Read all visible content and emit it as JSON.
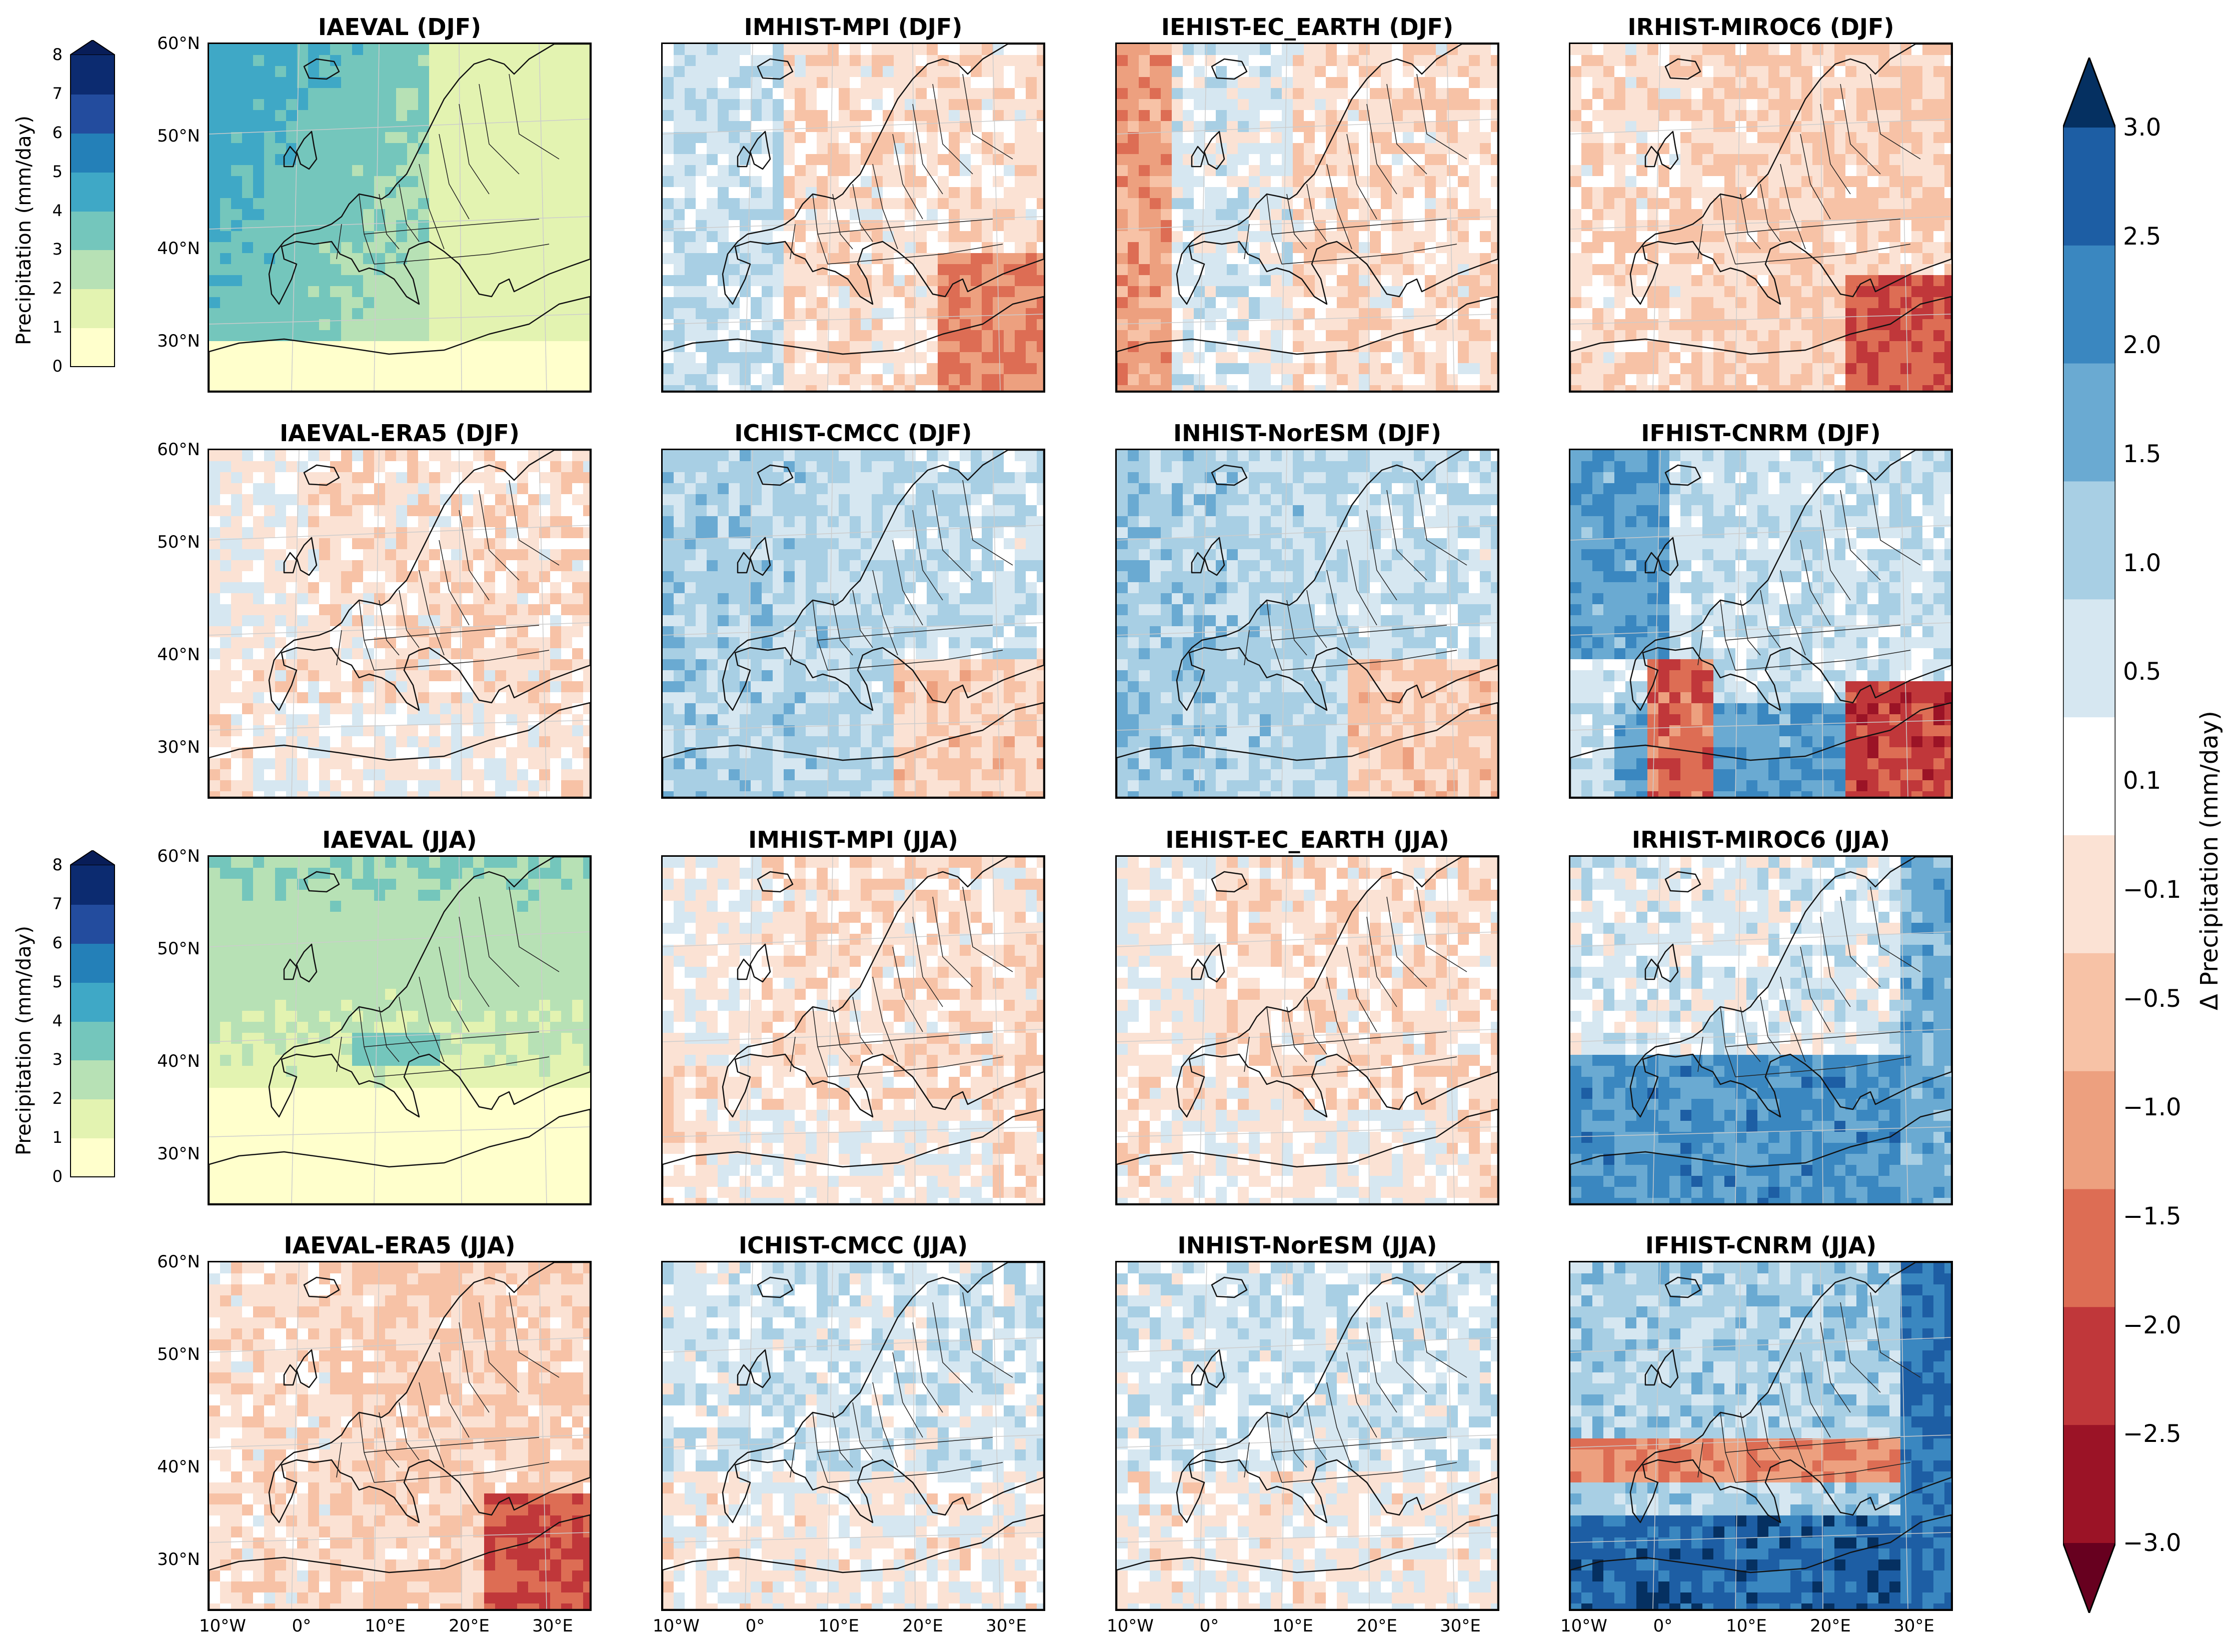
{
  "panels": [
    {
      "title": "IAEVAL (DJF)",
      "kind": "abs",
      "season": "DJF"
    },
    {
      "title": "IMHIST-MPI (DJF)",
      "kind": "diff",
      "season": "DJF",
      "bias": "mixed-blue-west"
    },
    {
      "title": "IEHIST-EC_EARTH (DJF)",
      "kind": "diff",
      "season": "DJF",
      "bias": "red-west"
    },
    {
      "title": "IRHIST-MIROC6 (DJF)",
      "kind": "diff",
      "season": "DJF",
      "bias": "red"
    },
    {
      "title": "IAEVAL-ERA5 (DJF)",
      "kind": "diff",
      "season": "DJF",
      "bias": "light-red"
    },
    {
      "title": "ICHIST-CMCC (DJF)",
      "kind": "diff",
      "season": "DJF",
      "bias": "blue"
    },
    {
      "title": "INHIST-NorESM (DJF)",
      "kind": "diff",
      "season": "DJF",
      "bias": "blue"
    },
    {
      "title": "IFHIST-CNRM (DJF)",
      "kind": "diff",
      "season": "DJF",
      "bias": "blue-strong"
    },
    {
      "title": "IAEVAL (JJA)",
      "kind": "abs",
      "season": "JJA"
    },
    {
      "title": "IMHIST-MPI (JJA)",
      "kind": "diff",
      "season": "JJA",
      "bias": "light-red"
    },
    {
      "title": "IEHIST-EC_EARTH (JJA)",
      "kind": "diff",
      "season": "JJA",
      "bias": "light-red"
    },
    {
      "title": "IRHIST-MIROC6 (JJA)",
      "kind": "diff",
      "season": "JJA",
      "bias": "blue-south"
    },
    {
      "title": "IAEVAL-ERA5 (JJA)",
      "kind": "diff",
      "season": "JJA",
      "bias": "red"
    },
    {
      "title": "ICHIST-CMCC (JJA)",
      "kind": "diff",
      "season": "JJA",
      "bias": "light-blue"
    },
    {
      "title": "INHIST-NorESM (JJA)",
      "kind": "diff",
      "season": "JJA",
      "bias": "light-blue"
    },
    {
      "title": "IFHIST-CNRM (JJA)",
      "kind": "diff",
      "season": "JJA",
      "bias": "blue-strong-red-south"
    }
  ],
  "lat_ticks": [
    "60°N",
    "50°N",
    "40°N",
    "30°N"
  ],
  "lon_ticks": [
    "10°W",
    "0°",
    "10°E",
    "20°E",
    "30°E"
  ],
  "abs_colorbar": {
    "label": "Precipitation (mm/day)",
    "ticks": [
      "0",
      "1",
      "2",
      "3",
      "4",
      "5",
      "6",
      "7",
      "8"
    ],
    "colors": [
      "#ffffcc",
      "#e3f3b1",
      "#b7e1b5",
      "#74c6bc",
      "#3fa8c6",
      "#2480b8",
      "#234c9e",
      "#0c2b70"
    ],
    "extend_color": "#081d58"
  },
  "diff_colorbar": {
    "label": "Δ Precipitation (mm/day)",
    "ticks": [
      "3.0",
      "2.5",
      "2.0",
      "1.5",
      "1.0",
      "0.5",
      "0.1",
      "−0.1",
      "−0.5",
      "−1.0",
      "−1.5",
      "−2.0",
      "−2.5",
      "−3.0"
    ],
    "colors": [
      "#053061",
      "#1d5ea4",
      "#3a87c0",
      "#6aaad2",
      "#a8cfe4",
      "#d6e7f1",
      "#ffffff",
      "#fbe2d4",
      "#f7c2a6",
      "#eda07f",
      "#dd6d54",
      "#c0373a",
      "#9b1326",
      "#67001f"
    ]
  }
}
